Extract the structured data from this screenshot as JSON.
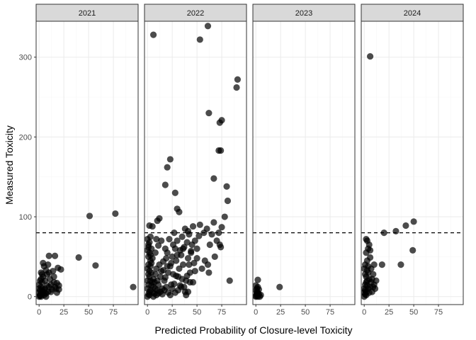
{
  "chart_data": {
    "type": "scatter",
    "xlabel": "Predicted Probability of Closure-level Toxicity",
    "ylabel": "Measured Toxicity",
    "xlim": [
      -3,
      100
    ],
    "ylim": [
      -10,
      345
    ],
    "x_ticks": [
      0,
      25,
      50,
      75
    ],
    "y_ticks": [
      0,
      100,
      200,
      300
    ],
    "reference_line": {
      "y": 80,
      "style": "dashed"
    },
    "grid": true,
    "panels": [
      {
        "label": "2021",
        "points": [
          [
            0,
            0
          ],
          [
            1,
            2
          ],
          [
            2,
            0
          ],
          [
            0,
            5
          ],
          [
            1,
            8
          ],
          [
            3,
            3
          ],
          [
            2,
            12
          ],
          [
            4,
            6
          ],
          [
            5,
            2
          ],
          [
            6,
            10
          ],
          [
            0,
            15
          ],
          [
            3,
            18
          ],
          [
            7,
            4
          ],
          [
            8,
            14
          ],
          [
            1,
            1
          ],
          [
            2,
            4
          ],
          [
            5,
            8
          ],
          [
            9,
            6
          ],
          [
            10,
            12
          ],
          [
            6,
            20
          ],
          [
            4,
            25
          ],
          [
            2,
            30
          ],
          [
            8,
            28
          ],
          [
            12,
            15
          ],
          [
            13,
            9
          ],
          [
            11,
            22
          ],
          [
            15,
            18
          ],
          [
            17,
            10
          ],
          [
            18,
            5
          ],
          [
            20,
            14
          ],
          [
            19,
            36
          ],
          [
            22,
            34
          ],
          [
            14,
            32
          ],
          [
            5,
            38
          ],
          [
            9,
            40
          ],
          [
            4,
            42
          ],
          [
            10,
            51
          ],
          [
            16,
            51
          ],
          [
            40,
            49
          ],
          [
            57,
            39
          ],
          [
            51,
            101
          ],
          [
            77,
            104
          ],
          [
            95,
            12
          ],
          [
            3,
            10
          ],
          [
            6,
            5
          ],
          [
            7,
            0
          ],
          [
            0,
            10
          ],
          [
            1,
            20
          ],
          [
            2,
            22
          ],
          [
            10,
            30
          ],
          [
            15,
            25
          ],
          [
            12,
            6
          ],
          [
            16,
            12
          ],
          [
            18,
            17
          ],
          [
            20,
            9
          ],
          [
            3,
            28
          ],
          [
            7,
            33
          ]
        ]
      },
      {
        "label": "2022",
        "points": [
          [
            0,
            0
          ],
          [
            1,
            3
          ],
          [
            2,
            6
          ],
          [
            0,
            10
          ],
          [
            1,
            15
          ],
          [
            3,
            20
          ],
          [
            2,
            25
          ],
          [
            4,
            30
          ],
          [
            0,
            35
          ],
          [
            1,
            40
          ],
          [
            5,
            5
          ],
          [
            6,
            12
          ],
          [
            3,
            45
          ],
          [
            2,
            55
          ],
          [
            4,
            60
          ],
          [
            1,
            65
          ],
          [
            0,
            72
          ],
          [
            3,
            75
          ],
          [
            5,
            88
          ],
          [
            2,
            89
          ],
          [
            1,
            50
          ],
          [
            6,
            22
          ],
          [
            7,
            18
          ],
          [
            8,
            28
          ],
          [
            9,
            35
          ],
          [
            10,
            8
          ],
          [
            11,
            15
          ],
          [
            12,
            40
          ],
          [
            13,
            25
          ],
          [
            14,
            32
          ],
          [
            15,
            10
          ],
          [
            16,
            44
          ],
          [
            17,
            20
          ],
          [
            18,
            60
          ],
          [
            19,
            48
          ],
          [
            20,
            55
          ],
          [
            21,
            30
          ],
          [
            22,
            72
          ],
          [
            23,
            38
          ],
          [
            24,
            15
          ],
          [
            25,
            50
          ],
          [
            26,
            65
          ],
          [
            27,
            80
          ],
          [
            28,
            5
          ],
          [
            29,
            45
          ],
          [
            30,
            70
          ],
          [
            31,
            25
          ],
          [
            32,
            35
          ],
          [
            33,
            58
          ],
          [
            34,
            52
          ],
          [
            35,
            75
          ],
          [
            36,
            40
          ],
          [
            37,
            62
          ],
          [
            38,
            85
          ],
          [
            39,
            20
          ],
          [
            40,
            68
          ],
          [
            41,
            48
          ],
          [
            42,
            78
          ],
          [
            43,
            30
          ],
          [
            44,
            55
          ],
          [
            45,
            65
          ],
          [
            46,
            88
          ],
          [
            47,
            42
          ],
          [
            48,
            70
          ],
          [
            50,
            60
          ],
          [
            52,
            76
          ],
          [
            53,
            90
          ],
          [
            55,
            35
          ],
          [
            57,
            80
          ],
          [
            58,
            45
          ],
          [
            60,
            85
          ],
          [
            61,
            40
          ],
          [
            62,
            30
          ],
          [
            63,
            65
          ],
          [
            65,
            78
          ],
          [
            67,
            93
          ],
          [
            68,
            50
          ],
          [
            70,
            70
          ],
          [
            72,
            80
          ],
          [
            73,
            65
          ],
          [
            74,
            62
          ],
          [
            75,
            87
          ],
          [
            78,
            100
          ],
          [
            80,
            138
          ],
          [
            81,
            120
          ],
          [
            83,
            20
          ],
          [
            6,
            328
          ],
          [
            10,
            95
          ],
          [
            12,
            98
          ],
          [
            18,
            140
          ],
          [
            20,
            162
          ],
          [
            23,
            172
          ],
          [
            28,
            130
          ],
          [
            30,
            110
          ],
          [
            32,
            106
          ],
          [
            41,
            82
          ],
          [
            44,
            57
          ],
          [
            53,
            322
          ],
          [
            61,
            339
          ],
          [
            62,
            230
          ],
          [
            67,
            148
          ],
          [
            72,
            183
          ],
          [
            73,
            218
          ],
          [
            74,
            183
          ],
          [
            75,
            221
          ],
          [
            90,
            262
          ],
          [
            91,
            272
          ],
          [
            2,
            2
          ],
          [
            3,
            8
          ],
          [
            4,
            14
          ],
          [
            5,
            18
          ],
          [
            6,
            0
          ],
          [
            7,
            4
          ],
          [
            8,
            10
          ],
          [
            9,
            2
          ],
          [
            10,
            20
          ],
          [
            11,
            4
          ],
          [
            13,
            6
          ],
          [
            15,
            3
          ],
          [
            17,
            8
          ],
          [
            19,
            12
          ],
          [
            21,
            5
          ],
          [
            23,
            2
          ],
          [
            25,
            10
          ],
          [
            27,
            16
          ],
          [
            29,
            26
          ],
          [
            31,
            8
          ],
          [
            33,
            14
          ],
          [
            35,
            22
          ],
          [
            37,
            12
          ],
          [
            39,
            2
          ],
          [
            41,
            6
          ],
          [
            43,
            18
          ],
          [
            0,
            20
          ],
          [
            1,
            28
          ],
          [
            2,
            32
          ],
          [
            3,
            38
          ],
          [
            4,
            42
          ],
          [
            5,
            48
          ],
          [
            0,
            58
          ],
          [
            1,
            62
          ],
          [
            2,
            68
          ],
          [
            3,
            52
          ],
          [
            8,
            55
          ],
          [
            9,
            72
          ],
          [
            11,
            64
          ],
          [
            14,
            70
          ],
          [
            16,
            33
          ],
          [
            18,
            24
          ],
          [
            20,
            38
          ],
          [
            24,
            42
          ],
          [
            26,
            28
          ],
          [
            28,
            60
          ],
          [
            30,
            52
          ],
          [
            34,
            12
          ],
          [
            36,
            60
          ],
          [
            38,
            6
          ],
          [
            40,
            26
          ],
          [
            42,
            40
          ],
          [
            46,
            18
          ],
          [
            48,
            32
          ],
          [
            50,
            48
          ]
        ]
      },
      {
        "label": "2023",
        "points": [
          [
            0,
            0
          ],
          [
            1,
            2
          ],
          [
            2,
            5
          ],
          [
            0,
            8
          ],
          [
            1,
            10
          ],
          [
            3,
            3
          ],
          [
            2,
            12
          ],
          [
            0,
            1
          ],
          [
            1,
            6
          ],
          [
            4,
            0
          ],
          [
            3,
            9
          ],
          [
            2,
            21
          ],
          [
            24,
            12
          ],
          [
            1,
            4
          ],
          [
            0,
            14
          ],
          [
            2,
            0
          ],
          [
            5,
            2
          ]
        ]
      },
      {
        "label": "2024",
        "points": [
          [
            0,
            0
          ],
          [
            1,
            3
          ],
          [
            2,
            6
          ],
          [
            0,
            10
          ],
          [
            1,
            15
          ],
          [
            3,
            20
          ],
          [
            2,
            25
          ],
          [
            4,
            30
          ],
          [
            0,
            35
          ],
          [
            1,
            40
          ],
          [
            5,
            5
          ],
          [
            6,
            12
          ],
          [
            3,
            45
          ],
          [
            2,
            55
          ],
          [
            4,
            60
          ],
          [
            7,
            18
          ],
          [
            8,
            22
          ],
          [
            9,
            28
          ],
          [
            10,
            15
          ],
          [
            6,
            58
          ],
          [
            5,
            65
          ],
          [
            3,
            70
          ],
          [
            2,
            72
          ],
          [
            6,
            49
          ],
          [
            4,
            38
          ],
          [
            7,
            35
          ],
          [
            10,
            40
          ],
          [
            12,
            20
          ],
          [
            18,
            40
          ],
          [
            20,
            80
          ],
          [
            32,
            82
          ],
          [
            37,
            40
          ],
          [
            42,
            89
          ],
          [
            49,
            58
          ],
          [
            50,
            94
          ],
          [
            6,
            301
          ],
          [
            1,
            8
          ],
          [
            2,
            2
          ],
          [
            3,
            14
          ],
          [
            4,
            10
          ],
          [
            5,
            22
          ],
          [
            0,
            5
          ],
          [
            1,
            28
          ],
          [
            8,
            6
          ],
          [
            9,
            12
          ],
          [
            11,
            10
          ],
          [
            3,
            33
          ],
          [
            2,
            18
          ]
        ]
      }
    ]
  }
}
